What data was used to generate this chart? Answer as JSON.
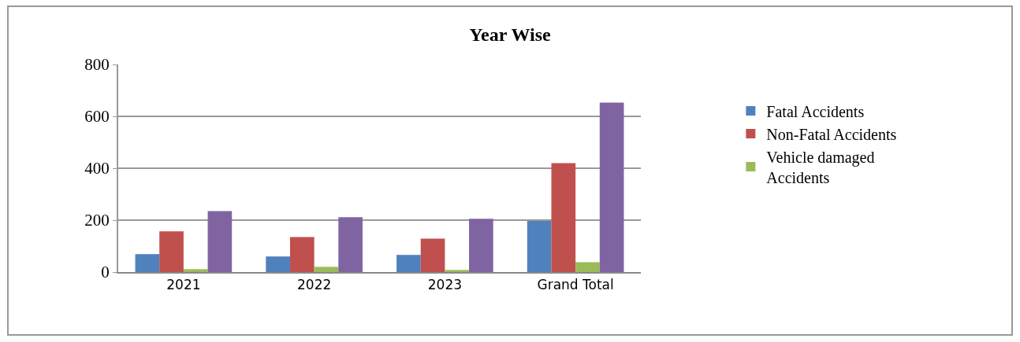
{
  "chart_data": {
    "type": "bar",
    "title": "Year Wise",
    "categories": [
      "2021",
      "2022",
      "2023",
      "Grand Total"
    ],
    "series": [
      {
        "name": "Fatal Accidents",
        "color": "#4f81bd",
        "values": [
          69,
          60,
          66,
          197
        ]
      },
      {
        "name": "Non-Fatal Accidents",
        "color": "#c0504d",
        "values": [
          157,
          135,
          129,
          420
        ]
      },
      {
        "name": "Vehicle damaged Accidents",
        "color": "#9bbb59",
        "values": [
          11,
          20,
          8,
          38
        ]
      },
      {
        "color": "#8064a2",
        "values": [
          235,
          211,
          205,
          653
        ]
      }
    ],
    "ylim": [
      0,
      800
    ],
    "yticks": [
      0,
      200,
      400,
      600,
      800
    ],
    "grid": "y",
    "legend": "right"
  }
}
